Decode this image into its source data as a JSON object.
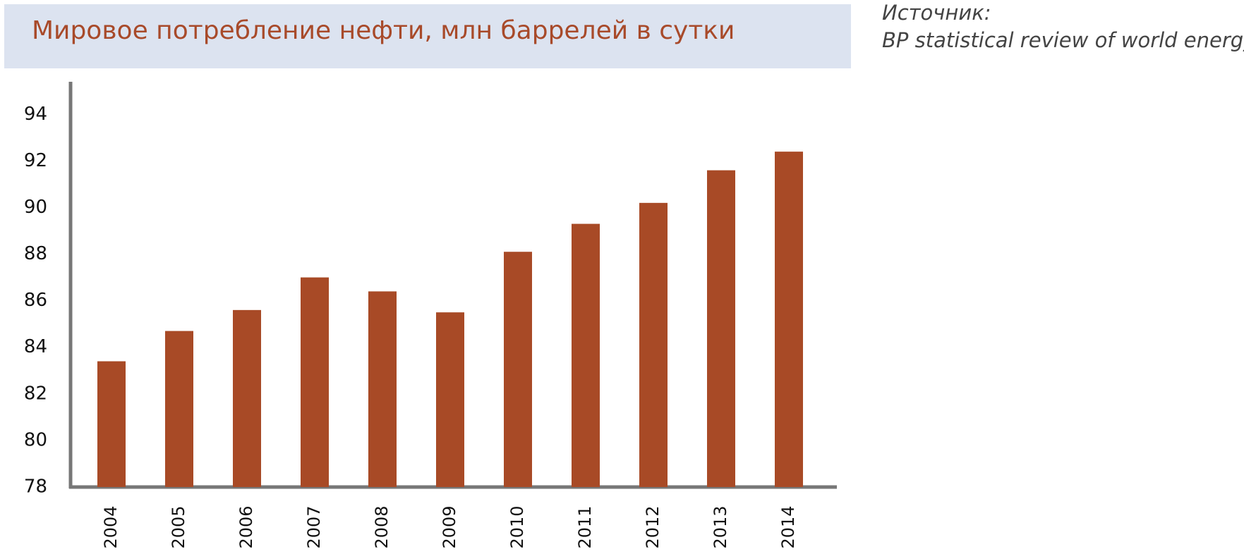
{
  "chart_data": {
    "type": "bar",
    "title": "Мировое потребление нефти, млн баррелей в сутки",
    "annotations": [
      "Источник:",
      "BP statistical review of world energy"
    ],
    "categories": [
      "2004",
      "2005",
      "2006",
      "2007",
      "2008",
      "2009",
      "2010",
      "2011",
      "2012",
      "2013",
      "2014"
    ],
    "values": [
      83.4,
      84.7,
      85.6,
      87.0,
      86.4,
      85.5,
      88.1,
      89.3,
      90.2,
      91.6,
      92.4
    ],
    "color": "#a84a26",
    "ylim": [
      78,
      95.4
    ],
    "yticks": [
      78,
      80,
      82,
      84,
      86,
      88,
      90,
      92,
      94
    ],
    "grid": false
  }
}
